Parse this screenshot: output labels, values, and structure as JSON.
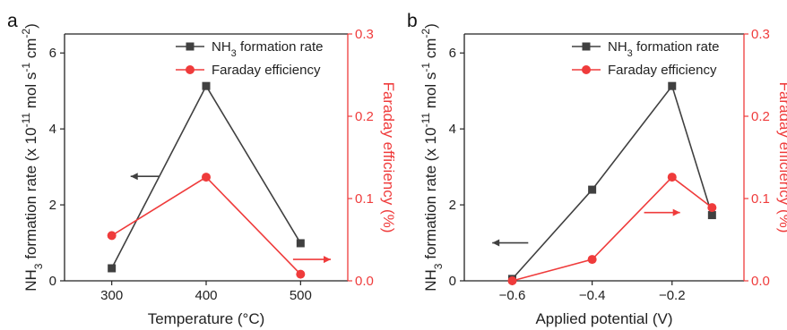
{
  "colors": {
    "rate": "#404040",
    "fe": "#ef3b3b",
    "axis": "#222222"
  },
  "chart_data": [
    {
      "type": "line",
      "panel_label": "a",
      "xlabel": "Temperature (°C)",
      "ylabel_prefix": "NH",
      "ylabel_sub": "3",
      "ylabel_main": " formation rate (x 10",
      "ylabel_exp1": "-11",
      "ylabel_mid": " mol s",
      "ylabel_exp2": "-1",
      "ylabel_unit": " cm",
      "ylabel_exp3": "-2",
      "ylabel_close": ")",
      "y2label": "Faraday efficiency (%)",
      "xlim": [
        250,
        550
      ],
      "xticks": [
        300,
        400,
        500
      ],
      "xtick_labels": [
        "300",
        "400",
        "500"
      ],
      "ylim": [
        0,
        6.5
      ],
      "yticks": [
        0,
        2,
        4,
        6
      ],
      "ytick_labels": [
        "0",
        "2",
        "4",
        "6"
      ],
      "y2lim": [
        0,
        0.3
      ],
      "y2ticks": [
        0,
        0.1,
        0.2,
        0.3
      ],
      "y2tick_labels": [
        "0.0",
        "0.1",
        "0.2",
        "0.3"
      ],
      "series": [
        {
          "name_prefix": "NH",
          "name_sub": "3",
          "name_rest": " formation rate",
          "axis": "left",
          "marker": "square",
          "x": [
            300,
            400,
            500
          ],
          "y": [
            0.33,
            5.13,
            0.99
          ]
        },
        {
          "name": "Faraday efficiency",
          "axis": "right",
          "marker": "circle",
          "x": [
            300,
            400,
            500
          ],
          "y": [
            0.055,
            0.126,
            0.008
          ]
        }
      ],
      "arrows": [
        {
          "direction": "left",
          "axis": "left",
          "x_from": 350,
          "x_to": 320,
          "y": 2.75
        },
        {
          "direction": "right",
          "axis": "right",
          "x_from": 492,
          "x_to": 532,
          "y": 0.026
        }
      ]
    },
    {
      "type": "line",
      "panel_label": "b",
      "xlabel": "Applied potential (V)",
      "ylabel_prefix": "NH",
      "ylabel_sub": "3",
      "ylabel_main": " formation rate (x 10",
      "ylabel_exp1": "-11",
      "ylabel_mid": " mol s",
      "ylabel_exp2": "-1",
      "ylabel_unit": " cm",
      "ylabel_exp3": "-2",
      "ylabel_close": ")",
      "y2label": "Faraday efficiency (%)",
      "xlim": [
        -0.72,
        -0.02
      ],
      "xticks": [
        -0.6,
        -0.4,
        -0.2
      ],
      "xtick_labels": [
        "−0.6",
        "−0.4",
        "−0.2"
      ],
      "ylim": [
        0,
        6.5
      ],
      "yticks": [
        0,
        2,
        4,
        6
      ],
      "ytick_labels": [
        "0",
        "2",
        "4",
        "6"
      ],
      "y2lim": [
        0,
        0.3
      ],
      "y2ticks": [
        0,
        0.1,
        0.2,
        0.3
      ],
      "y2tick_labels": [
        "0.0",
        "0.1",
        "0.2",
        "0.3"
      ],
      "series": [
        {
          "name_prefix": "NH",
          "name_sub": "3",
          "name_rest": " formation rate",
          "axis": "left",
          "marker": "square",
          "x": [
            -0.6,
            -0.4,
            -0.2,
            -0.1
          ],
          "y": [
            0.05,
            2.4,
            5.13,
            1.73
          ]
        },
        {
          "name": "Faraday efficiency",
          "axis": "right",
          "marker": "circle",
          "x": [
            -0.6,
            -0.4,
            -0.2,
            -0.1
          ],
          "y": [
            0.0,
            0.026,
            0.126,
            0.089
          ]
        }
      ],
      "arrows": [
        {
          "direction": "left",
          "axis": "left",
          "x_from": -0.56,
          "x_to": -0.65,
          "y": 1.0
        },
        {
          "direction": "right",
          "axis": "right",
          "x_from": -0.27,
          "x_to": -0.18,
          "y": 0.083
        }
      ]
    }
  ]
}
